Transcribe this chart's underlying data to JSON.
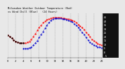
{
  "title": "  Milwaukee Weather Outdoor Temperature (Red) vs Wind Chill (Blue) (24 Hours)",
  "title_fontsize": 2.8,
  "background_color": "#e8e8e8",
  "plot_bg_color": "#e8e8e8",
  "right_panel_color": "#111111",
  "ylim": [
    -7,
    50
  ],
  "xlim": [
    0,
    24
  ],
  "x_ticks": [
    0,
    2,
    4,
    6,
    8,
    10,
    12,
    14,
    16,
    18,
    20,
    22,
    24
  ],
  "x_tick_labels": [
    "0",
    "2",
    "4",
    "6",
    "8",
    "10",
    "12",
    "14",
    "16",
    "18",
    "20",
    "22",
    "24"
  ],
  "grid_color": "#888888",
  "temp_color": "#ff0000",
  "windchill_color": "#0000cc",
  "black_color": "#000000",
  "temp_x": [
    0,
    0.5,
    1,
    1.5,
    2,
    2.5,
    3,
    3.5,
    4,
    4.5,
    5,
    5.5,
    6,
    6.5,
    7,
    7.5,
    8,
    8.5,
    9,
    9.5,
    10,
    10.5,
    11,
    11.5,
    12,
    12.5,
    13,
    13.5,
    14,
    14.5,
    15,
    15.5,
    16,
    16.5,
    17,
    17.5,
    18,
    18.5,
    19,
    19.5,
    20,
    20.5,
    21,
    21.5,
    22,
    22.5,
    23,
    23.5,
    24
  ],
  "temp_y": [
    22,
    20,
    18,
    16,
    14,
    13,
    12,
    12,
    12,
    12,
    13,
    14,
    17,
    20,
    24,
    28,
    32,
    35,
    38,
    40,
    42,
    43,
    44,
    45,
    45,
    45,
    45,
    45,
    44,
    44,
    43,
    43,
    42,
    41,
    40,
    38,
    36,
    34,
    32,
    29,
    26,
    23,
    20,
    17,
    15,
    13,
    11,
    10,
    9
  ],
  "wc_x": [
    4,
    4.5,
    5,
    5.5,
    6,
    6.5,
    7,
    7.5,
    8,
    8.5,
    9,
    9.5,
    10,
    10.5,
    11,
    11.5,
    12,
    12.5,
    13,
    13.5,
    14,
    14.5,
    15,
    15.5,
    16,
    16.5,
    17,
    17.5,
    18,
    18.5,
    19,
    19.5,
    20,
    20.5,
    21,
    21.5,
    22,
    22.5,
    23,
    23.5,
    24
  ],
  "wc_y": [
    5,
    5,
    5,
    6,
    7,
    9,
    12,
    15,
    19,
    23,
    27,
    31,
    35,
    38,
    41,
    43,
    44,
    44,
    44,
    44,
    43,
    43,
    42,
    41,
    40,
    39,
    37,
    35,
    32,
    29,
    26,
    23,
    19,
    16,
    13,
    11,
    9,
    8,
    7,
    7,
    6
  ],
  "black_x": [
    0,
    0.5,
    1,
    1.5,
    2,
    2.5,
    3,
    3.5,
    4
  ],
  "black_y": [
    22,
    20,
    18,
    16,
    14,
    13,
    12,
    12,
    12
  ],
  "right_y_vals": [
    45,
    40,
    35,
    30,
    25,
    20,
    15,
    10,
    5,
    0,
    -5
  ],
  "marker_size": 1.2,
  "line_width": 0.6
}
